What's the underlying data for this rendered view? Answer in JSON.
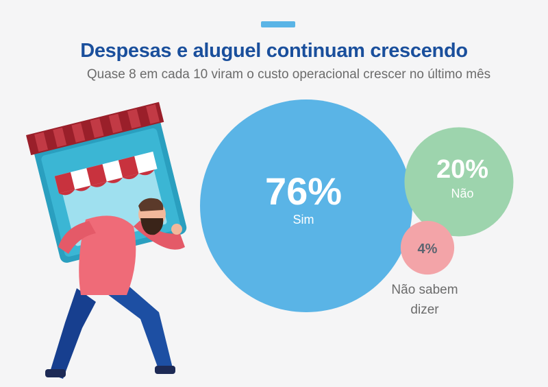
{
  "header": {
    "title": "Despesas e aluguel continuam crescendo",
    "subtitle": "Quase 8 em cada 10 viram o custo operacional crescer no último mês"
  },
  "chart_data": {
    "type": "bubble",
    "categories": [
      "Sim",
      "Não",
      "Não sabem dizer"
    ],
    "values": [
      76,
      20,
      4
    ],
    "value_labels": [
      "76%",
      "20%",
      "4%"
    ],
    "colors": [
      "#5ab4e6",
      "#9dd4ad",
      "#f3a4a8"
    ],
    "label_lines": [
      [
        "Sim"
      ],
      [
        "Não"
      ],
      [
        "Não sabem",
        "dizer"
      ]
    ]
  },
  "icons": {
    "illustration": "man-carrying-storefront-icon"
  }
}
